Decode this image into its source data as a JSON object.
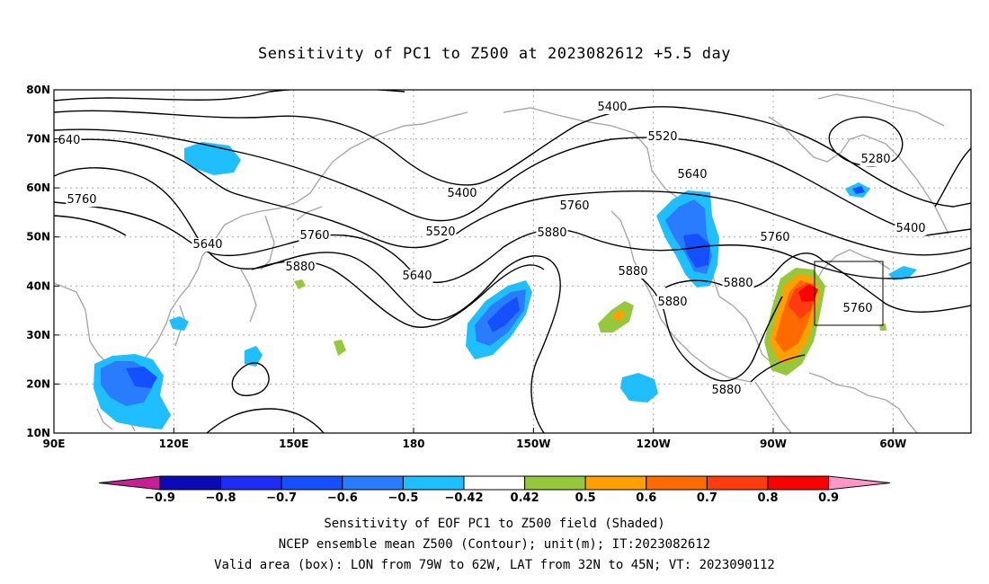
{
  "title": "Sensitivity of PC1 to Z500 at 2023082612 +5.5 day",
  "lat_ticks": [
    "80N",
    "70N",
    "60N",
    "50N",
    "40N",
    "30N",
    "20N",
    "10N"
  ],
  "lon_ticks": [
    "90E",
    "120E",
    "150E",
    "180",
    "150W",
    "120W",
    "90W",
    "60W"
  ],
  "contour_labels": [
    "5400",
    "5520",
    "5640",
    "5280",
    "5400",
    "5760",
    "5400",
    "640",
    "5760",
    "5640",
    "5760",
    "5520",
    "5760",
    "5880",
    "5880",
    "5640",
    "5880",
    "5760",
    "5880",
    "5880",
    "5880"
  ],
  "colorbar": {
    "labels": [
      "-0.9",
      "-0.8",
      "-0.7",
      "-0.6",
      "-0.5",
      "-0.42",
      "0.42",
      "0.5",
      "0.6",
      "0.7",
      "0.8",
      "0.9"
    ],
    "colors": [
      "#0a0ab8",
      "#1f2cf5",
      "#1450ff",
      "#2a7cff",
      "#1fbfff",
      "#ffffff",
      "#96c83c",
      "#ffa000",
      "#ff6a00",
      "#ff3c10",
      "#ff0000"
    ],
    "low_extend_color": "#c81e96",
    "high_extend_color": "#ff96c8"
  },
  "valid_box": {
    "lon_from": "79W",
    "lon_to": "62W",
    "lat_from": "32N",
    "lat_to": "45N"
  },
  "footer": {
    "line1": "Sensitivity of EOF PC1 to Z500 field (Shaded)",
    "line2": "NCEP ensemble mean Z500 (Contour); unit(m); IT:2023082612",
    "line3": "Valid area (box): LON from 79W to 62W, LAT from 32N to 45N; VT: 2023090112"
  }
}
